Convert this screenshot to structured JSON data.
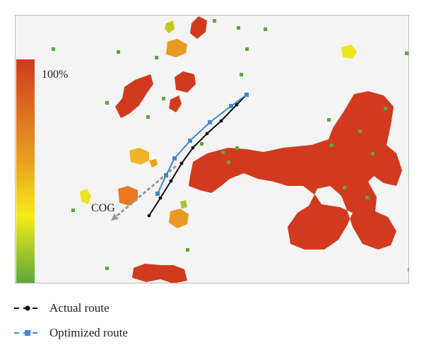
{
  "chart_data": {
    "type": "scatter",
    "title": "",
    "colorbar": {
      "max_label": "100%",
      "colors": [
        "#d23a1f",
        "#e8a020",
        "#f4ec18",
        "#5aa83a"
      ]
    },
    "annotation": {
      "text": "COG",
      "arrow_from": [
        248,
        234
      ],
      "arrow_to": [
        160,
        308
      ]
    },
    "legend_placement": "bottom-left",
    "series": [
      {
        "name": "Actual route",
        "color": "#111111",
        "marker": "circle",
        "x": [
          348,
          334,
          312,
          292,
          272,
          256,
          241,
          226,
          210
        ],
        "y": [
          133,
          147,
          170,
          188,
          208,
          230,
          255,
          279,
          304
        ]
      },
      {
        "name": "Optimized route",
        "color": "#3f87cc",
        "marker": "square",
        "x": [
          348,
          326,
          296,
          268,
          246,
          234,
          222
        ],
        "y": [
          133,
          149,
          172,
          198,
          223,
          247,
          273
        ]
      }
    ],
    "regions": [
      {
        "level": "high",
        "color": "#d23a1f",
        "points": [
          [
            175,
            122
          ],
          [
            190,
            112
          ],
          [
            212,
            104
          ],
          [
            216,
            118
          ],
          [
            206,
            132
          ],
          [
            196,
            148
          ],
          [
            182,
            160
          ],
          [
            170,
            166
          ],
          [
            162,
            150
          ],
          [
            172,
            138
          ]
        ]
      },
      {
        "level": "high",
        "color": "#d23a1f",
        "points": [
          [
            246,
            108
          ],
          [
            258,
            100
          ],
          [
            274,
            104
          ],
          [
            276,
            118
          ],
          [
            264,
            130
          ],
          [
            248,
            126
          ]
        ]
      },
      {
        "level": "high",
        "color": "#d23a1f",
        "points": [
          [
            240,
            140
          ],
          [
            252,
            134
          ],
          [
            256,
            146
          ],
          [
            248,
            158
          ],
          [
            238,
            152
          ]
        ]
      },
      {
        "level": "high",
        "color": "#d23a1f",
        "points": [
          [
            280,
            22
          ],
          [
            292,
            28
          ],
          [
            290,
            44
          ],
          [
            278,
            54
          ],
          [
            268,
            46
          ],
          [
            270,
            32
          ]
        ]
      },
      {
        "level": "high",
        "color": "#d23a1f",
        "points": [
          [
            272,
            228
          ],
          [
            292,
            216
          ],
          [
            322,
            208
          ],
          [
            348,
            210
          ],
          [
            372,
            214
          ],
          [
            400,
            208
          ],
          [
            440,
            204
          ],
          [
            464,
            196
          ],
          [
            470,
            180
          ],
          [
            486,
            156
          ],
          [
            500,
            132
          ],
          [
            520,
            128
          ],
          [
            542,
            134
          ],
          [
            556,
            150
          ],
          [
            552,
            176
          ],
          [
            546,
            204
          ],
          [
            560,
            216
          ],
          [
            568,
            240
          ],
          [
            560,
            262
          ],
          [
            542,
            258
          ],
          [
            528,
            248
          ],
          [
            520,
            256
          ],
          [
            532,
            278
          ],
          [
            530,
            298
          ],
          [
            548,
            306
          ],
          [
            560,
            326
          ],
          [
            552,
            346
          ],
          [
            534,
            352
          ],
          [
            512,
            344
          ],
          [
            498,
            320
          ],
          [
            490,
            296
          ],
          [
            482,
            276
          ],
          [
            466,
            262
          ],
          [
            448,
            266
          ],
          [
            436,
            290
          ],
          [
            420,
            300
          ],
          [
            406,
            320
          ],
          [
            410,
            344
          ],
          [
            430,
            352
          ],
          [
            458,
            352
          ],
          [
            478,
            338
          ],
          [
            490,
            318
          ],
          [
            498,
            300
          ],
          [
            480,
            292
          ],
          [
            454,
            288
          ],
          [
            446,
            276
          ],
          [
            428,
            262
          ],
          [
            406,
            262
          ],
          [
            386,
            256
          ],
          [
            364,
            252
          ],
          [
            344,
            244
          ],
          [
            324,
            252
          ],
          [
            312,
            262
          ],
          [
            298,
            272
          ],
          [
            282,
            268
          ],
          [
            266,
            262
          ],
          [
            268,
            248
          ]
        ]
      },
      {
        "level": "high",
        "color": "#d23a1f",
        "points": [
          [
            188,
            378
          ],
          [
            204,
            372
          ],
          [
            226,
            374
          ],
          [
            244,
            374
          ],
          [
            260,
            380
          ],
          [
            264,
            396
          ],
          [
            244,
            400
          ],
          [
            226,
            394
          ],
          [
            206,
            398
          ],
          [
            186,
            392
          ]
        ]
      },
      {
        "level": "mid",
        "color": "#e89a22",
        "points": [
          [
            236,
            58
          ],
          [
            250,
            54
          ],
          [
            264,
            62
          ],
          [
            262,
            74
          ],
          [
            248,
            80
          ],
          [
            234,
            76
          ]
        ]
      },
      {
        "level": "mid",
        "color": "#e87a22",
        "points": [
          [
            166,
            266
          ],
          [
            180,
            262
          ],
          [
            194,
            268
          ],
          [
            194,
            282
          ],
          [
            182,
            290
          ],
          [
            168,
            286
          ]
        ]
      },
      {
        "level": "mid",
        "color": "#e89a22",
        "points": [
          [
            240,
            298
          ],
          [
            254,
            294
          ],
          [
            266,
            302
          ],
          [
            264,
            316
          ],
          [
            250,
            322
          ],
          [
            238,
            314
          ]
        ]
      },
      {
        "level": "mid",
        "color": "#f0b42a",
        "points": [
          [
            182,
            212
          ],
          [
            196,
            208
          ],
          [
            210,
            214
          ],
          [
            210,
            226
          ],
          [
            198,
            232
          ],
          [
            184,
            228
          ]
        ]
      },
      {
        "level": "mid",
        "color": "#e8a020",
        "points": [
          [
            210,
            226
          ],
          [
            220,
            224
          ],
          [
            222,
            232
          ],
          [
            214,
            236
          ]
        ]
      },
      {
        "level": "low",
        "color": "#ece41c",
        "points": [
          [
            482,
            66
          ],
          [
            496,
            62
          ],
          [
            504,
            72
          ],
          [
            498,
            82
          ],
          [
            484,
            80
          ]
        ]
      },
      {
        "level": "low",
        "color": "#ece41c",
        "points": [
          [
            112,
            270
          ],
          [
            122,
            266
          ],
          [
            128,
            276
          ],
          [
            124,
            288
          ],
          [
            114,
            284
          ]
        ]
      },
      {
        "level": "low",
        "color": "#c8c81e",
        "points": [
          [
            234,
            32
          ],
          [
            244,
            28
          ],
          [
            246,
            40
          ],
          [
            238,
            46
          ],
          [
            232,
            40
          ]
        ]
      },
      {
        "level": "low",
        "color": "#a0c83a",
        "points": [
          [
            254,
            284
          ],
          [
            262,
            282
          ],
          [
            264,
            292
          ],
          [
            256,
            294
          ]
        ]
      }
    ],
    "scattered_cells": [
      {
        "color": "#5aa83a",
        "points": [
          [
            130,
            16
          ],
          [
            300,
            26
          ],
          [
            334,
            36
          ],
          [
            372,
            38
          ],
          [
            72,
            66
          ],
          [
            164,
            70
          ],
          [
            218,
            78
          ],
          [
            346,
            66
          ],
          [
            572,
            72
          ],
          [
            148,
            142
          ],
          [
            206,
            162
          ],
          [
            338,
            102
          ],
          [
            542,
            150
          ],
          [
            462,
            166
          ],
          [
            466,
            202
          ],
          [
            524,
            214
          ],
          [
            506,
            182
          ],
          [
            484,
            262
          ],
          [
            516,
            276
          ],
          [
            312,
            212
          ],
          [
            332,
            206
          ],
          [
            262,
            350
          ],
          [
            100,
            294
          ],
          [
            148,
            376
          ],
          [
            576,
            378
          ],
          [
            228,
            136
          ],
          [
            282,
            200
          ],
          [
            320,
            226
          ]
        ]
      }
    ]
  }
}
